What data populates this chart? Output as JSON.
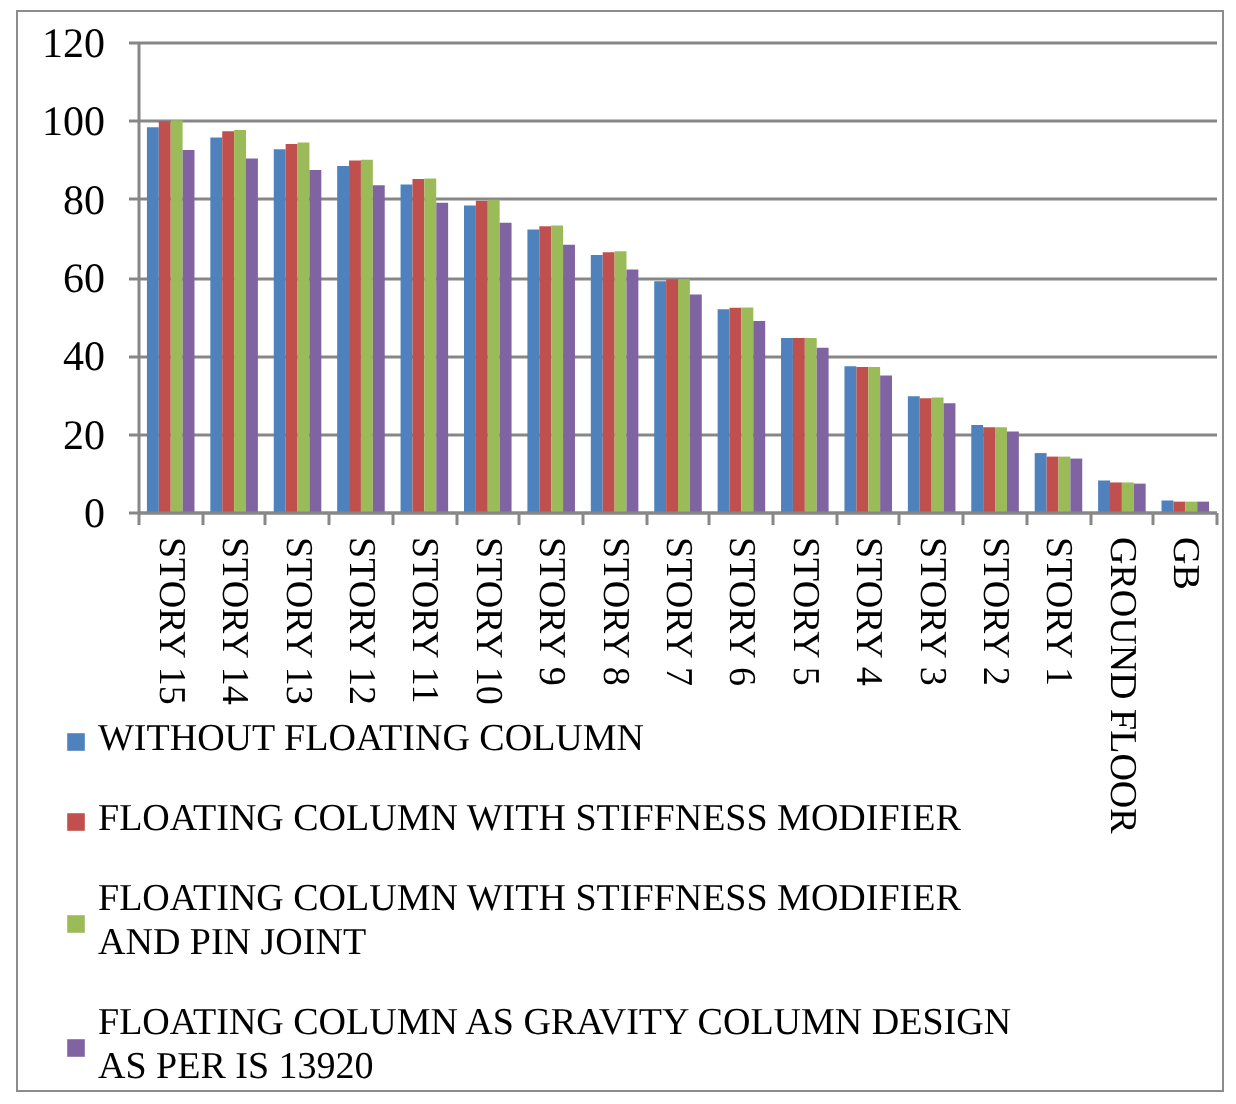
{
  "chart_data": {
    "type": "bar",
    "categories": [
      "STORY 15",
      "STORY 14",
      "STORY 13",
      "STORY 12",
      "STORY 11",
      "STORY 10",
      "STORY 9",
      "STORY 8",
      "STORY 7",
      "STORY 6",
      "STORY 5",
      "STORY 4",
      "STORY 3",
      "STORY 2",
      "STORY 1",
      "GROUND FLOOR",
      "GB"
    ],
    "series": [
      {
        "name": "WITHOUT FLOATING COLUMN",
        "color": "#4f81bd",
        "values": [
          98.5,
          95.9,
          92.9,
          88.6,
          83.9,
          78.5,
          72.4,
          65.9,
          59.2,
          52.0,
          44.7,
          37.5,
          29.8,
          22.5,
          15.3,
          8.3,
          3.2
        ]
      },
      {
        "name": "FLOATING COLUMN WITH STIFFNESS MODIFIER",
        "color": "#c0504d",
        "values": [
          100,
          97.5,
          94.2,
          90.0,
          85.3,
          79.7,
          73.2,
          66.6,
          59.7,
          52.4,
          44.7,
          37.3,
          29.3,
          21.9,
          14.4,
          7.8,
          2.9
        ]
      },
      {
        "name": "FLOATING COLUMN WITH STIFFNESS MODIFIER AND PIN JOINT",
        "color": "#9bbb59",
        "values": [
          100.3,
          97.8,
          94.6,
          90.2,
          85.4,
          80.0,
          73.4,
          66.8,
          59.7,
          52.5,
          44.7,
          37.3,
          29.5,
          21.9,
          14.4,
          7.8,
          2.9
        ]
      },
      {
        "name": "FLOATING COLUMN AS GRAVITY COLUMN DESIGN AS PER IS 13920",
        "color": "#8064a2",
        "values": [
          92.7,
          90.5,
          87.6,
          83.7,
          79.2,
          74.1,
          68.5,
          62.2,
          55.8,
          49.0,
          42.2,
          35.1,
          28.0,
          20.8,
          13.9,
          7.5,
          2.9
        ]
      }
    ],
    "ylim": [
      0,
      120
    ],
    "yticks": [
      0,
      20,
      40,
      60,
      80,
      100,
      120
    ],
    "grid": "y",
    "legend": "bottom left"
  }
}
